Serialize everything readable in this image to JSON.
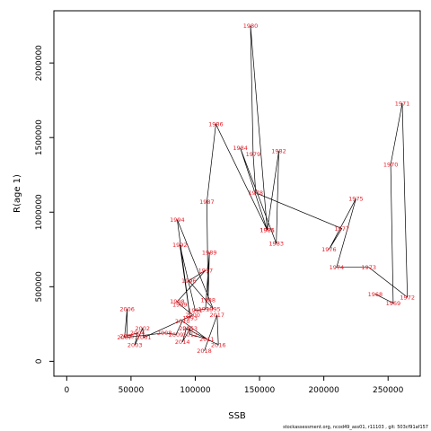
{
  "chart_data": {
    "type": "line",
    "xlabel": "SSB",
    "ylabel": "R(age 1)",
    "xlim": [
      -10000,
      275000
    ],
    "ylim": [
      -100000,
      2350000
    ],
    "xticks": [
      {
        "value": 0,
        "label": "0"
      },
      {
        "value": 50000,
        "label": "50000"
      },
      {
        "value": 100000,
        "label": "100000"
      },
      {
        "value": 150000,
        "label": "150000"
      },
      {
        "value": 200000,
        "label": "200000"
      },
      {
        "value": 250000,
        "label": "250000"
      }
    ],
    "yticks": [
      {
        "value": 0,
        "label": "0"
      },
      {
        "value": 500000,
        "label": "500000"
      },
      {
        "value": 1000000,
        "label": "1000000"
      },
      {
        "value": 1500000,
        "label": "1500000"
      },
      {
        "value": 2000000,
        "label": "2000000"
      }
    ],
    "points": [
      {
        "label": "1968",
        "x": 240000,
        "y": 450000
      },
      {
        "label": "1969",
        "x": 254000,
        "y": 390000
      },
      {
        "label": "1970",
        "x": 252000,
        "y": 1320000
      },
      {
        "label": "1971",
        "x": 261000,
        "y": 1730000
      },
      {
        "label": "1972",
        "x": 265000,
        "y": 430000
      },
      {
        "label": "1973",
        "x": 235000,
        "y": 630000
      },
      {
        "label": "1974",
        "x": 210000,
        "y": 630000
      },
      {
        "label": "1975",
        "x": 225000,
        "y": 1090000
      },
      {
        "label": "1976",
        "x": 204000,
        "y": 750000
      },
      {
        "label": "1977",
        "x": 214000,
        "y": 890000
      },
      {
        "label": "1978",
        "x": 147000,
        "y": 1130000
      },
      {
        "label": "1979",
        "x": 145000,
        "y": 1390000
      },
      {
        "label": "1980",
        "x": 143000,
        "y": 2250000
      },
      {
        "label": "1981",
        "x": 156000,
        "y": 880000
      },
      {
        "label": "1982",
        "x": 165000,
        "y": 1410000
      },
      {
        "label": "1983",
        "x": 163000,
        "y": 790000
      },
      {
        "label": "1984",
        "x": 135000,
        "y": 1430000
      },
      {
        "label": "1985",
        "x": 156000,
        "y": 880000
      },
      {
        "label": "1986",
        "x": 116000,
        "y": 1590000
      },
      {
        "label": "1987",
        "x": 109000,
        "y": 1070000
      },
      {
        "label": "1988",
        "x": 110000,
        "y": 410000
      },
      {
        "label": "1989",
        "x": 111000,
        "y": 730000
      },
      {
        "label": "1990",
        "x": 108000,
        "y": 350000
      },
      {
        "label": "1991",
        "x": 100000,
        "y": 340000
      },
      {
        "label": "1992",
        "x": 88000,
        "y": 780000
      },
      {
        "label": "1993",
        "x": 96000,
        "y": 290000
      },
      {
        "label": "1994",
        "x": 86000,
        "y": 950000
      },
      {
        "label": "1995",
        "x": 114000,
        "y": 350000
      },
      {
        "label": "1996",
        "x": 95000,
        "y": 540000
      },
      {
        "label": "1997",
        "x": 108000,
        "y": 610000
      },
      {
        "label": "1998",
        "x": 86000,
        "y": 400000
      },
      {
        "label": "1999",
        "x": 88000,
        "y": 380000
      },
      {
        "label": "2000",
        "x": 98000,
        "y": 310000
      },
      {
        "label": "2001",
        "x": 60000,
        "y": 160000
      },
      {
        "label": "2002",
        "x": 59000,
        "y": 220000
      },
      {
        "label": "2003",
        "x": 53000,
        "y": 110000
      },
      {
        "label": "2004",
        "x": 55000,
        "y": 190000
      },
      {
        "label": "2005",
        "x": 47000,
        "y": 170000
      },
      {
        "label": "2006",
        "x": 47000,
        "y": 350000
      },
      {
        "label": "2007",
        "x": 45000,
        "y": 160000
      },
      {
        "label": "2008",
        "x": 76000,
        "y": 190000
      },
      {
        "label": "2009",
        "x": 85000,
        "y": 180000
      },
      {
        "label": "2010",
        "x": 90000,
        "y": 270000
      },
      {
        "label": "2011",
        "x": 109000,
        "y": 150000
      },
      {
        "label": "2012",
        "x": 96000,
        "y": 180000
      },
      {
        "label": "2013",
        "x": 96000,
        "y": 220000
      },
      {
        "label": "2014",
        "x": 90000,
        "y": 130000
      },
      {
        "label": "2015",
        "x": 93000,
        "y": 220000
      },
      {
        "label": "2016",
        "x": 118000,
        "y": 110000
      },
      {
        "label": "2017",
        "x": 117000,
        "y": 310000
      },
      {
        "label": "2018",
        "x": 107000,
        "y": 70000
      }
    ]
  },
  "footer": "stockassessment.org, ncod49_ass01, r11103 , git: 503cf91af157"
}
